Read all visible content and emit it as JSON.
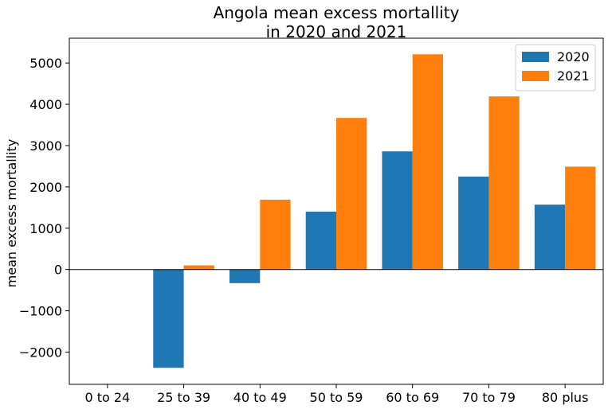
{
  "chart_data": {
    "type": "bar",
    "title_lines": [
      "Angola mean excess mortallity",
      "in 2020 and 2021"
    ],
    "xlabel": "",
    "ylabel": "mean excess mortallity",
    "categories": [
      "0 to 24",
      "25 to 39",
      "40 to 49",
      "50 to 59",
      "60 to 69",
      "70 to 79",
      "80 plus"
    ],
    "series": [
      {
        "name": "2020",
        "color": "#1f77b4",
        "values": [
          0,
          -2380,
          -330,
          1400,
          2860,
          2250,
          1570
        ]
      },
      {
        "name": "2021",
        "color": "#ff7f0e",
        "values": [
          0,
          100,
          1690,
          3670,
          5210,
          4190,
          2490
        ]
      }
    ],
    "ylim": [
      -2780,
      5600
    ],
    "yticks": [
      -2000,
      -1000,
      0,
      1000,
      2000,
      3000,
      4000,
      5000
    ],
    "ytick_labels": [
      "−2000",
      "−1000",
      "0",
      "1000",
      "2000",
      "3000",
      "4000",
      "5000"
    ],
    "grid": false,
    "legend_position": "top-right",
    "zero_line": true
  }
}
